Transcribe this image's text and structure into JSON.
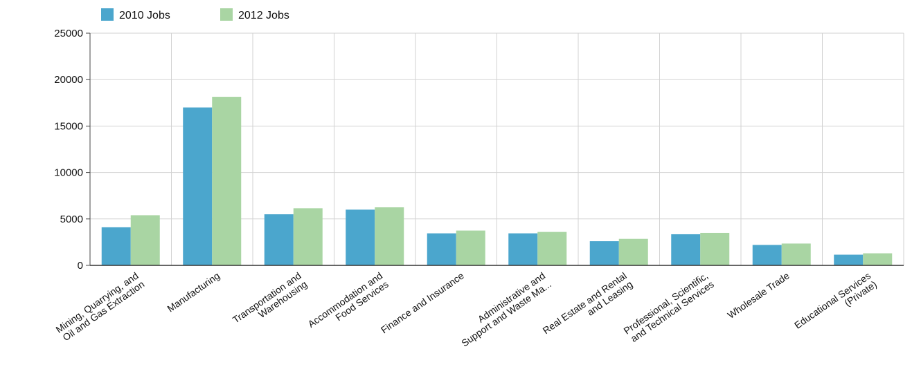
{
  "chart_data": {
    "type": "bar",
    "title": "",
    "xlabel": "",
    "ylabel": "",
    "categories": [
      [
        "Mining, Quarrying, and",
        "Oil and Gas Extraction"
      ],
      [
        "Manufacturing"
      ],
      [
        "Transportation and",
        "Warehousing"
      ],
      [
        "Accommodation and",
        "Food Services"
      ],
      [
        "Finance and Insurance"
      ],
      [
        "Administrative and",
        "Support and Waste Ma..."
      ],
      [
        "Real Estate and Rental",
        "and Leasing"
      ],
      [
        "Professional, Scientific,",
        "and Technical Services"
      ],
      [
        "Wholesale Trade"
      ],
      [
        "Educational Services",
        "(Private)"
      ]
    ],
    "series": [
      {
        "name": "2010 Jobs",
        "color": "#4ba6cd",
        "values": [
          4100,
          17000,
          5500,
          6000,
          3450,
          3450,
          2600,
          3350,
          2200,
          1150
        ]
      },
      {
        "name": "2012 Jobs",
        "color": "#a9d5a3",
        "values": [
          5400,
          18150,
          6150,
          6250,
          3750,
          3600,
          2850,
          3500,
          2350,
          1300
        ]
      }
    ],
    "ylim": [
      0,
      25000
    ],
    "yticks": [
      0,
      5000,
      10000,
      15000,
      20000,
      25000
    ],
    "grid": true,
    "legend_position": "top-left"
  }
}
